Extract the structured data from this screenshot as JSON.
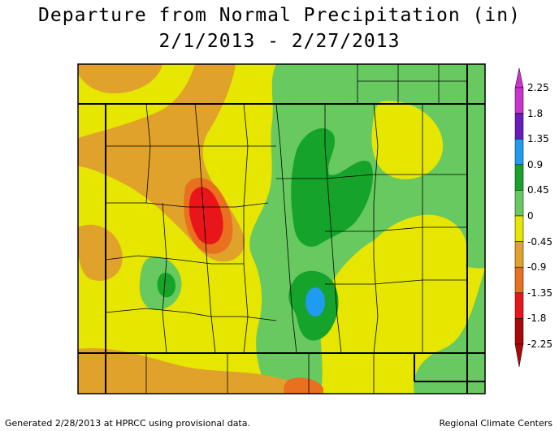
{
  "title": "Departure from Normal Precipitation (in)",
  "date_range": "2/1/2013 - 2/27/2013",
  "legend": {
    "labels": [
      "2.25",
      "1.8",
      "1.35",
      "0.9",
      "0.45",
      "0",
      "-0.45",
      "-0.9",
      "-1.35",
      "-1.8",
      "-2.25"
    ],
    "colors": [
      "#cc33cc",
      "#6a1bbd",
      "#1f9bf0",
      "#16a32b",
      "#67c95f",
      "#e6e600",
      "#e0a22a",
      "#e8701e",
      "#e8161a",
      "#a80a0a"
    ]
  },
  "colors": {
    "yellow": "#e6e600",
    "light_orange": "#e0a22a",
    "dark_orange": "#e8701e",
    "red": "#e8161a",
    "dark_red": "#a80a0a",
    "light_green": "#67c95f",
    "green": "#16a32b",
    "blue": "#1f9bf0"
  },
  "footer": {
    "left": "Generated 2/28/2013 at HPRCC using provisional data.",
    "right": "Regional Climate Centers"
  }
}
